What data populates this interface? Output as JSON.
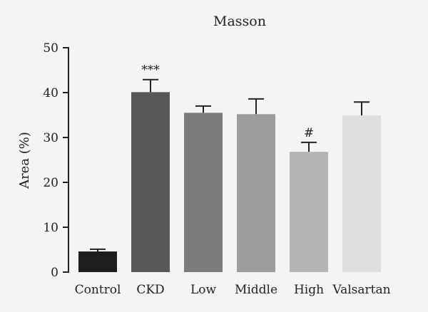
{
  "chart_data": {
    "type": "bar",
    "title": "Masson",
    "xlabel": "",
    "ylabel": "Area (%)",
    "ylim": [
      0,
      50
    ],
    "yticks": [
      0,
      10,
      20,
      30,
      40,
      50
    ],
    "grid": false,
    "categories": [
      "Control",
      "CKD",
      "Low",
      "Middle",
      "High",
      "Valsartan"
    ],
    "values": [
      4.6,
      40.1,
      35.5,
      35.2,
      26.8,
      34.9
    ],
    "errors": [
      0.5,
      2.8,
      1.5,
      3.4,
      2.1,
      3.0
    ],
    "colors": [
      "#1e1e1e",
      "#585858",
      "#7c7c7c",
      "#9d9d9d",
      "#b5b5b5",
      "#dedede"
    ],
    "annotations": [
      "",
      "***",
      "",
      "",
      "#",
      ""
    ]
  }
}
